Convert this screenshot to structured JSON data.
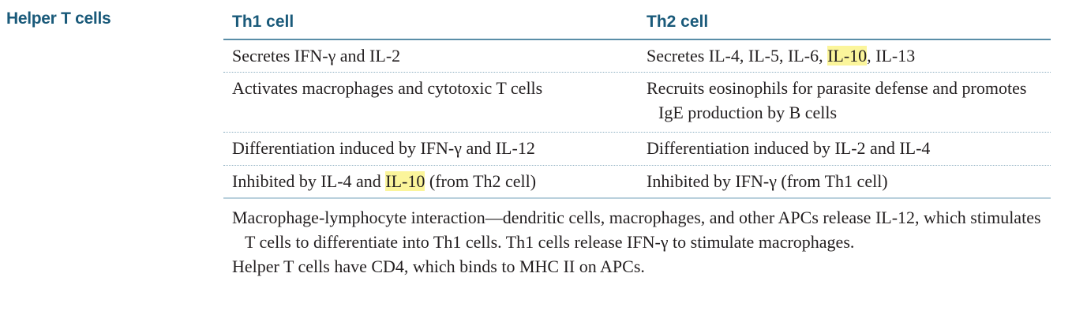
{
  "section_label": "Helper T cells",
  "headers": {
    "th1": "Th1 cell",
    "th2": "Th2 cell"
  },
  "rows": [
    {
      "th1": [
        "Secretes IFN-γ and IL-2"
      ],
      "th2": [
        "Secretes IL-4, IL-5, IL-6, ",
        "IL-10",
        ", IL-13"
      ]
    },
    {
      "th1": [
        "Activates macrophages and cytotoxic T cells"
      ],
      "th2": [
        "Recruits eosinophils for parasite defense and promotes IgE production by B cells"
      ]
    },
    {
      "th1": [
        "Differentiation induced by IFN-γ and IL-12"
      ],
      "th2": [
        "Differentiation induced by IL-2 and IL-4"
      ]
    },
    {
      "th1": [
        "Inhibited by IL-4 and ",
        "IL-10",
        " (from Th2 cell)"
      ],
      "th2": [
        "Inhibited by IFN-γ (from Th1 cell)"
      ]
    }
  ],
  "notes": [
    "Macrophage-lymphocyte interaction—dendritic cells, macrophages, and other APCs release IL-12, which stimulates T cells to differentiate into Th1 cells. Th1 cells release IFN-γ to stimulate macrophages.",
    "Helper T cells have CD4, which binds to MHC II on APCs."
  ],
  "highlight_color": "#fbf59b",
  "accent_color": "#1a5a7a"
}
